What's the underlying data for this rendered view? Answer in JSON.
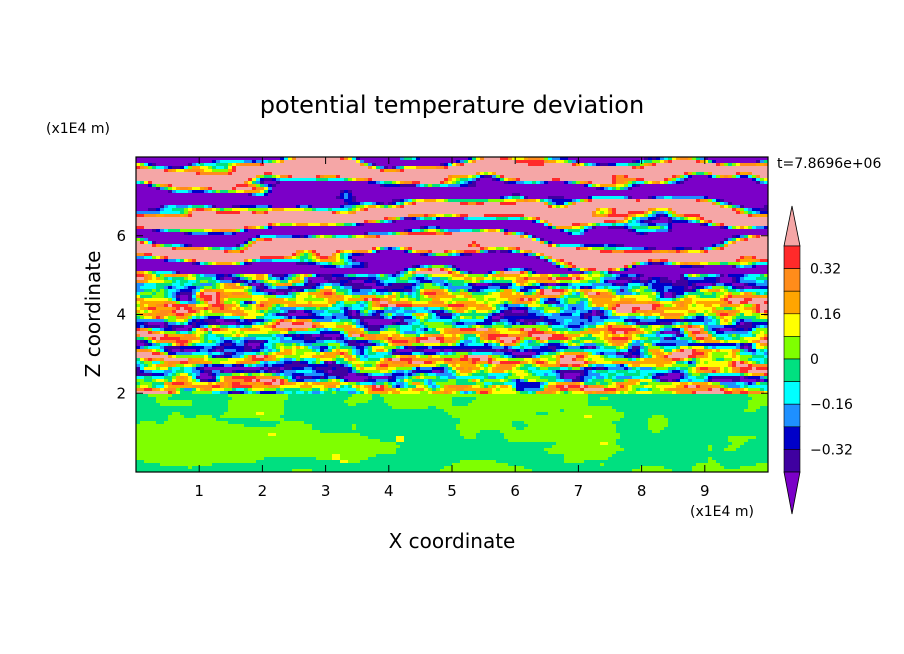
{
  "chart_data": {
    "type": "heatmap",
    "title": "potential temperature deviation",
    "xlabel": "X coordinate",
    "ylabel": "Z coordinate",
    "x_unit": "(x1E4 m)",
    "y_unit": "(x1E4 m)",
    "time_label": "t=7.8696e+06",
    "x_ticks": [
      "1",
      "2",
      "3",
      "4",
      "5",
      "6",
      "7",
      "8",
      "9"
    ],
    "y_ticks": [
      "2",
      "4",
      "6"
    ],
    "xlim": [
      0,
      10
    ],
    "ylim": [
      0,
      8
    ],
    "colorbar": {
      "levels": [
        -0.4,
        -0.32,
        -0.24,
        -0.16,
        -0.08,
        0,
        0.08,
        0.16,
        0.24,
        0.32,
        0.4
      ],
      "tick_labels": [
        "0.32",
        "0.16",
        "0",
        "−0.16",
        "−0.32"
      ],
      "tick_values": [
        0.32,
        0.16,
        0,
        -0.16,
        -0.32
      ],
      "colors_top_to_bottom": [
        "#f5a6a6",
        "#ff2a2a",
        "#ff8c1a",
        "#ffa500",
        "#ffff00",
        "#7fff00",
        "#00e080",
        "#00ffff",
        "#1e90ff",
        "#0000c8",
        "#3f00a0",
        "#7b00c8"
      ]
    },
    "regions": [
      {
        "z_range": [
          0,
          2
        ],
        "description_values": [
          0.0,
          0.04
        ],
        "note": "green / spring-green mottled layer"
      },
      {
        "z_range": [
          2,
          5
        ],
        "description_values": [
          -0.4,
          0.4
        ],
        "note": "turbulent multicolor layer"
      },
      {
        "z_range": [
          5,
          8
        ],
        "description_values": [
          -0.4,
          0.4
        ],
        "note": "alternating pink and purple bands"
      }
    ]
  }
}
